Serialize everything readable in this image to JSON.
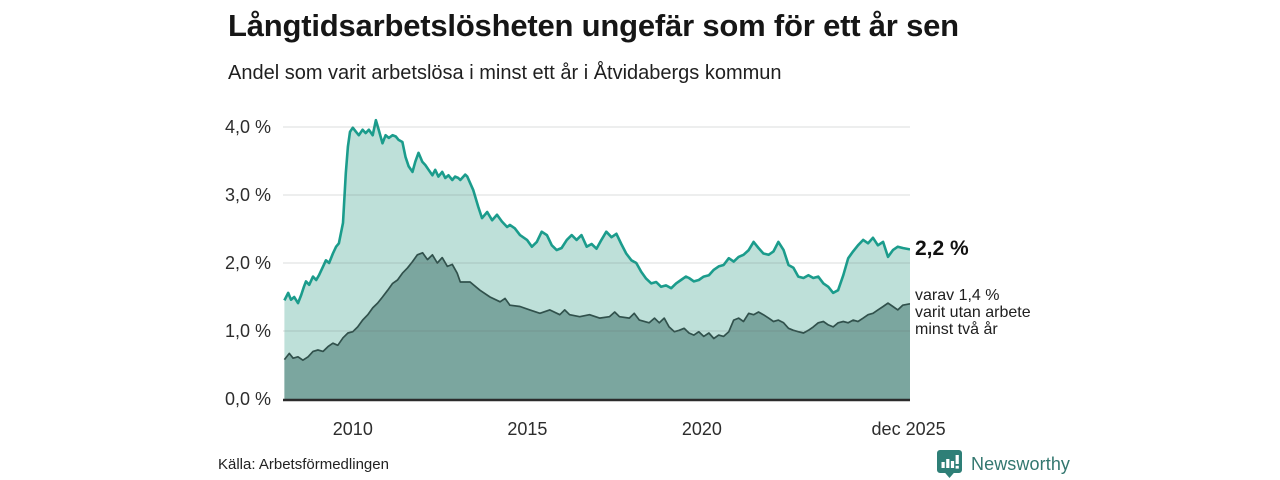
{
  "title": "Långtidsarbetslösheten ungefär som för ett år sen",
  "subtitle": "Andel som varit arbetslösa i minst ett år i Åtvidabergs kommun",
  "source": "Källa: Arbetsförmedlingen",
  "brand": {
    "name": "Newsworthy",
    "color": "#2e7f77"
  },
  "annotations": {
    "end_value": "2,2 %",
    "sub_line1": "varav 1,4 %",
    "sub_line2": "varit utan arbete",
    "sub_line3": "minst två år"
  },
  "colors": {
    "background": "#ffffff",
    "title_text": "#161616",
    "axis_text": "#2d2d2d",
    "gridline": "rgba(90,100,98,0.22)",
    "axis_line": "#2b2b2b",
    "total_line": "#1b9c8c",
    "total_fill": "#bee0d9",
    "two_year_line": "#31514c",
    "two_year_fill": "#7ba69f"
  },
  "chart_data": {
    "type": "area",
    "title": "Långtidsarbetslösheten ungefär som för ett år sen",
    "subtitle": "Andel som varit arbetslösa i minst ett år i Åtvidabergs kommun",
    "unit": "percent of workforce",
    "grid": true,
    "x_axis": {
      "min": 2008.0,
      "max": 2025.96,
      "ticks": [
        {
          "t": 2010,
          "label": "2010"
        },
        {
          "t": 2015,
          "label": "2015"
        },
        {
          "t": 2020,
          "label": "2020"
        },
        {
          "t": 2025.92,
          "label": "dec 2025"
        }
      ]
    },
    "y_axis": {
      "min": 0,
      "max": 4.35,
      "ticks": [
        {
          "v": 0,
          "label": "0,0 %"
        },
        {
          "v": 1,
          "label": "1,0 %"
        },
        {
          "v": 2,
          "label": "2,0 %"
        },
        {
          "v": 3,
          "label": "3,0 %"
        },
        {
          "v": 4,
          "label": "4,0 %"
        }
      ]
    },
    "series": [
      {
        "id": "total",
        "name": "Andel som varit arbetslösa i minst ett år",
        "end_label": "2,2 %",
        "line_color": "#1b9c8c",
        "fill_color": "#bee0d9",
        "line_width": 2.6,
        "points": [
          [
            2008.04,
            1.45
          ],
          [
            2008.15,
            1.56
          ],
          [
            2008.23,
            1.46
          ],
          [
            2008.32,
            1.5
          ],
          [
            2008.43,
            1.41
          ],
          [
            2008.52,
            1.53
          ],
          [
            2008.6,
            1.65
          ],
          [
            2008.66,
            1.73
          ],
          [
            2008.75,
            1.68
          ],
          [
            2008.86,
            1.8
          ],
          [
            2008.95,
            1.75
          ],
          [
            2009.03,
            1.82
          ],
          [
            2009.15,
            1.95
          ],
          [
            2009.23,
            2.04
          ],
          [
            2009.32,
            2.0
          ],
          [
            2009.43,
            2.14
          ],
          [
            2009.52,
            2.24
          ],
          [
            2009.6,
            2.29
          ],
          [
            2009.72,
            2.59
          ],
          [
            2009.8,
            3.32
          ],
          [
            2009.86,
            3.71
          ],
          [
            2009.92,
            3.93
          ],
          [
            2010.0,
            3.99
          ],
          [
            2010.09,
            3.93
          ],
          [
            2010.17,
            3.88
          ],
          [
            2010.28,
            3.96
          ],
          [
            2010.37,
            3.91
          ],
          [
            2010.46,
            3.96
          ],
          [
            2010.57,
            3.88
          ],
          [
            2010.66,
            4.1
          ],
          [
            2010.74,
            3.96
          ],
          [
            2010.85,
            3.76
          ],
          [
            2010.94,
            3.88
          ],
          [
            2011.03,
            3.84
          ],
          [
            2011.14,
            3.88
          ],
          [
            2011.23,
            3.86
          ],
          [
            2011.31,
            3.81
          ],
          [
            2011.42,
            3.78
          ],
          [
            2011.51,
            3.56
          ],
          [
            2011.6,
            3.42
          ],
          [
            2011.71,
            3.34
          ],
          [
            2011.79,
            3.49
          ],
          [
            2011.88,
            3.62
          ],
          [
            2011.99,
            3.49
          ],
          [
            2012.08,
            3.44
          ],
          [
            2012.17,
            3.37
          ],
          [
            2012.28,
            3.29
          ],
          [
            2012.36,
            3.37
          ],
          [
            2012.45,
            3.27
          ],
          [
            2012.56,
            3.34
          ],
          [
            2012.65,
            3.25
          ],
          [
            2012.74,
            3.29
          ],
          [
            2012.85,
            3.22
          ],
          [
            2012.93,
            3.27
          ],
          [
            2013.02,
            3.25
          ],
          [
            2013.08,
            3.22
          ],
          [
            2013.22,
            3.3
          ],
          [
            2013.28,
            3.27
          ],
          [
            2013.45,
            3.07
          ],
          [
            2013.59,
            2.83
          ],
          [
            2013.7,
            2.66
          ],
          [
            2013.85,
            2.75
          ],
          [
            2013.99,
            2.63
          ],
          [
            2014.13,
            2.71
          ],
          [
            2014.27,
            2.61
          ],
          [
            2014.42,
            2.53
          ],
          [
            2014.5,
            2.56
          ],
          [
            2014.64,
            2.51
          ],
          [
            2014.79,
            2.41
          ],
          [
            2014.99,
            2.34
          ],
          [
            2015.13,
            2.24
          ],
          [
            2015.27,
            2.31
          ],
          [
            2015.41,
            2.46
          ],
          [
            2015.56,
            2.41
          ],
          [
            2015.7,
            2.26
          ],
          [
            2015.84,
            2.19
          ],
          [
            2015.98,
            2.22
          ],
          [
            2016.13,
            2.34
          ],
          [
            2016.27,
            2.41
          ],
          [
            2016.41,
            2.34
          ],
          [
            2016.55,
            2.41
          ],
          [
            2016.7,
            2.24
          ],
          [
            2016.84,
            2.28
          ],
          [
            2016.98,
            2.21
          ],
          [
            2017.12,
            2.34
          ],
          [
            2017.26,
            2.46
          ],
          [
            2017.41,
            2.38
          ],
          [
            2017.55,
            2.43
          ],
          [
            2017.69,
            2.28
          ],
          [
            2017.83,
            2.14
          ],
          [
            2017.98,
            2.04
          ],
          [
            2018.12,
            2.0
          ],
          [
            2018.26,
            1.87
          ],
          [
            2018.4,
            1.77
          ],
          [
            2018.55,
            1.7
          ],
          [
            2018.69,
            1.72
          ],
          [
            2018.83,
            1.65
          ],
          [
            2018.97,
            1.67
          ],
          [
            2019.12,
            1.63
          ],
          [
            2019.26,
            1.7
          ],
          [
            2019.4,
            1.75
          ],
          [
            2019.54,
            1.8
          ],
          [
            2019.63,
            1.78
          ],
          [
            2019.77,
            1.73
          ],
          [
            2019.91,
            1.75
          ],
          [
            2020.05,
            1.8
          ],
          [
            2020.2,
            1.82
          ],
          [
            2020.34,
            1.9
          ],
          [
            2020.48,
            1.95
          ],
          [
            2020.62,
            1.97
          ],
          [
            2020.77,
            2.07
          ],
          [
            2020.91,
            2.02
          ],
          [
            2021.05,
            2.09
          ],
          [
            2021.19,
            2.12
          ],
          [
            2021.34,
            2.19
          ],
          [
            2021.48,
            2.31
          ],
          [
            2021.62,
            2.22
          ],
          [
            2021.76,
            2.14
          ],
          [
            2021.91,
            2.12
          ],
          [
            2022.05,
            2.17
          ],
          [
            2022.19,
            2.31
          ],
          [
            2022.34,
            2.19
          ],
          [
            2022.48,
            1.97
          ],
          [
            2022.62,
            1.93
          ],
          [
            2022.76,
            1.8
          ],
          [
            2022.91,
            1.78
          ],
          [
            2023.05,
            1.82
          ],
          [
            2023.19,
            1.78
          ],
          [
            2023.33,
            1.8
          ],
          [
            2023.48,
            1.7
          ],
          [
            2023.62,
            1.65
          ],
          [
            2023.76,
            1.56
          ],
          [
            2023.9,
            1.6
          ],
          [
            2024.05,
            1.82
          ],
          [
            2024.19,
            2.07
          ],
          [
            2024.33,
            2.17
          ],
          [
            2024.47,
            2.26
          ],
          [
            2024.62,
            2.34
          ],
          [
            2024.76,
            2.29
          ],
          [
            2024.9,
            2.37
          ],
          [
            2025.04,
            2.26
          ],
          [
            2025.19,
            2.31
          ],
          [
            2025.33,
            2.09
          ],
          [
            2025.47,
            2.19
          ],
          [
            2025.61,
            2.24
          ],
          [
            2025.75,
            2.22
          ],
          [
            2025.96,
            2.2
          ]
        ]
      },
      {
        "id": "two-years",
        "name": "varav utan arbete minst två år",
        "end_label": "1,4 %",
        "line_color": "#31514c",
        "fill_color": "#7ba69f",
        "line_width": 1.7,
        "points": [
          [
            2008.04,
            0.58
          ],
          [
            2008.18,
            0.67
          ],
          [
            2008.29,
            0.6
          ],
          [
            2008.43,
            0.62
          ],
          [
            2008.57,
            0.57
          ],
          [
            2008.72,
            0.62
          ],
          [
            2008.86,
            0.7
          ],
          [
            2009.0,
            0.72
          ],
          [
            2009.15,
            0.7
          ],
          [
            2009.29,
            0.77
          ],
          [
            2009.43,
            0.82
          ],
          [
            2009.57,
            0.79
          ],
          [
            2009.72,
            0.9
          ],
          [
            2009.86,
            0.97
          ],
          [
            2010.0,
            0.99
          ],
          [
            2010.14,
            1.06
          ],
          [
            2010.28,
            1.16
          ],
          [
            2010.43,
            1.24
          ],
          [
            2010.57,
            1.34
          ],
          [
            2010.71,
            1.41
          ],
          [
            2010.85,
            1.5
          ],
          [
            2011.0,
            1.6
          ],
          [
            2011.14,
            1.7
          ],
          [
            2011.28,
            1.75
          ],
          [
            2011.42,
            1.85
          ],
          [
            2011.57,
            1.93
          ],
          [
            2011.71,
            2.02
          ],
          [
            2011.85,
            2.12
          ],
          [
            2012.0,
            2.15
          ],
          [
            2012.14,
            2.05
          ],
          [
            2012.28,
            2.12
          ],
          [
            2012.42,
            2.0
          ],
          [
            2012.56,
            2.08
          ],
          [
            2012.71,
            1.95
          ],
          [
            2012.85,
            1.98
          ],
          [
            2012.99,
            1.85
          ],
          [
            2013.08,
            1.72
          ],
          [
            2013.36,
            1.72
          ],
          [
            2013.64,
            1.6
          ],
          [
            2013.93,
            1.5
          ],
          [
            2014.22,
            1.43
          ],
          [
            2014.36,
            1.48
          ],
          [
            2014.5,
            1.38
          ],
          [
            2014.79,
            1.36
          ],
          [
            2015.07,
            1.31
          ],
          [
            2015.36,
            1.26
          ],
          [
            2015.64,
            1.31
          ],
          [
            2015.93,
            1.24
          ],
          [
            2016.07,
            1.31
          ],
          [
            2016.21,
            1.24
          ],
          [
            2016.5,
            1.21
          ],
          [
            2016.78,
            1.24
          ],
          [
            2017.07,
            1.19
          ],
          [
            2017.35,
            1.21
          ],
          [
            2017.5,
            1.28
          ],
          [
            2017.64,
            1.21
          ],
          [
            2017.92,
            1.19
          ],
          [
            2018.06,
            1.26
          ],
          [
            2018.21,
            1.16
          ],
          [
            2018.49,
            1.12
          ],
          [
            2018.64,
            1.19
          ],
          [
            2018.78,
            1.12
          ],
          [
            2018.92,
            1.19
          ],
          [
            2019.06,
            1.06
          ],
          [
            2019.21,
            0.99
          ],
          [
            2019.35,
            1.01
          ],
          [
            2019.49,
            1.04
          ],
          [
            2019.63,
            0.97
          ],
          [
            2019.77,
            0.94
          ],
          [
            2019.91,
            0.99
          ],
          [
            2020.05,
            0.92
          ],
          [
            2020.2,
            0.97
          ],
          [
            2020.34,
            0.89
          ],
          [
            2020.48,
            0.94
          ],
          [
            2020.62,
            0.92
          ],
          [
            2020.77,
            0.99
          ],
          [
            2020.91,
            1.16
          ],
          [
            2021.05,
            1.19
          ],
          [
            2021.19,
            1.14
          ],
          [
            2021.34,
            1.26
          ],
          [
            2021.48,
            1.24
          ],
          [
            2021.62,
            1.28
          ],
          [
            2021.76,
            1.24
          ],
          [
            2021.91,
            1.19
          ],
          [
            2022.05,
            1.14
          ],
          [
            2022.19,
            1.16
          ],
          [
            2022.34,
            1.12
          ],
          [
            2022.48,
            1.04
          ],
          [
            2022.62,
            1.01
          ],
          [
            2022.76,
            0.99
          ],
          [
            2022.91,
            0.97
          ],
          [
            2023.05,
            1.01
          ],
          [
            2023.19,
            1.06
          ],
          [
            2023.33,
            1.12
          ],
          [
            2023.48,
            1.14
          ],
          [
            2023.62,
            1.09
          ],
          [
            2023.76,
            1.06
          ],
          [
            2023.9,
            1.12
          ],
          [
            2024.05,
            1.14
          ],
          [
            2024.19,
            1.12
          ],
          [
            2024.33,
            1.16
          ],
          [
            2024.47,
            1.14
          ],
          [
            2024.62,
            1.19
          ],
          [
            2024.76,
            1.24
          ],
          [
            2024.9,
            1.26
          ],
          [
            2025.04,
            1.31
          ],
          [
            2025.19,
            1.36
          ],
          [
            2025.33,
            1.41
          ],
          [
            2025.47,
            1.36
          ],
          [
            2025.61,
            1.31
          ],
          [
            2025.75,
            1.38
          ],
          [
            2025.96,
            1.4
          ]
        ]
      }
    ],
    "annotations": [
      "2,2 %",
      "varav 1,4 %",
      "varit utan arbete",
      "minst två år"
    ]
  }
}
